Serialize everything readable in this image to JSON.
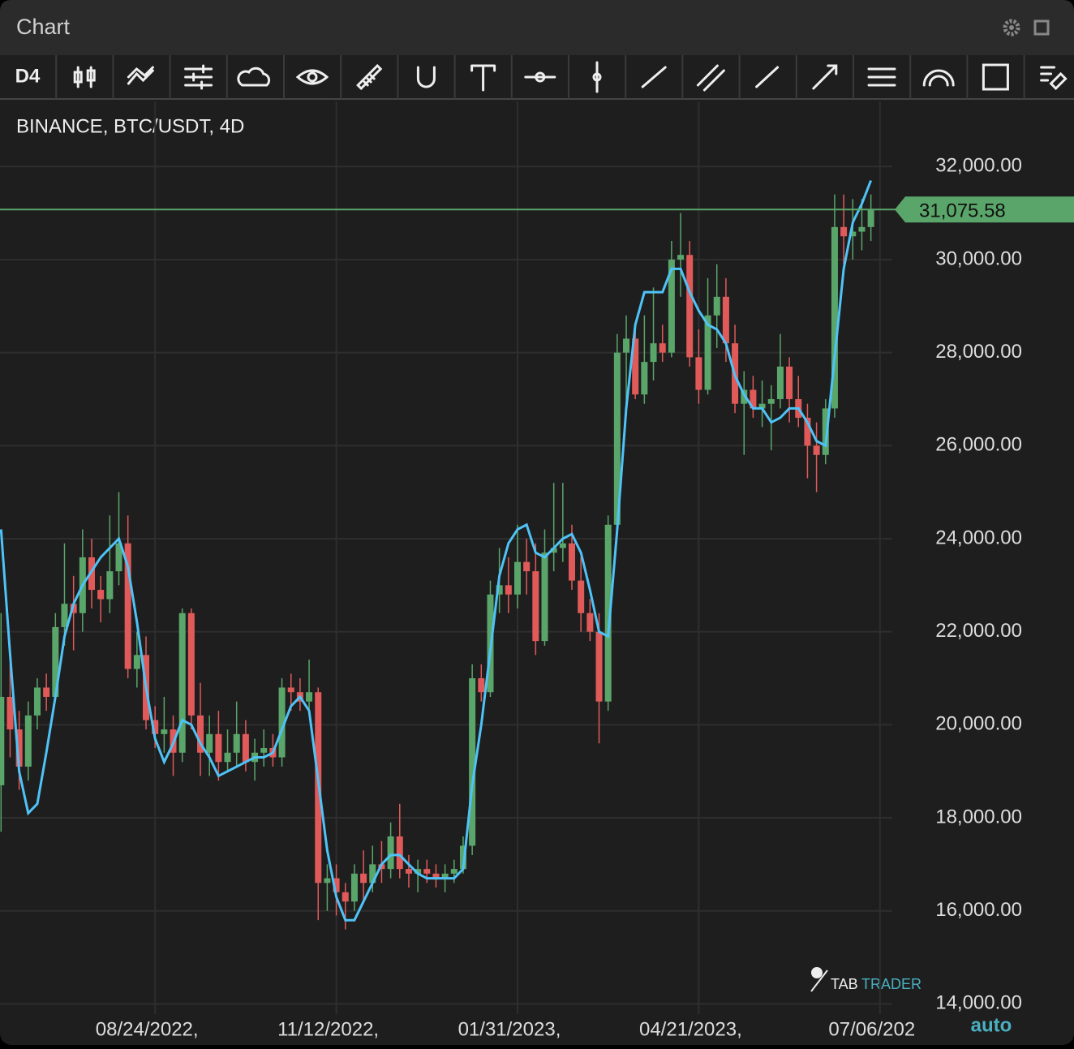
{
  "window": {
    "title": "Chart",
    "interval": "D4",
    "scale_mode": "auto",
    "logo": {
      "left": "TAB",
      "right": "TRADER"
    }
  },
  "chart_data": {
    "type": "candlestick",
    "title": "BINANCE, BTC/USDT, 4D",
    "up_color": "#5aa66a",
    "down_color": "#e05a5a",
    "line_color": "#4fc3f7",
    "ylim": [
      13780,
      33400
    ],
    "yticks": [
      {
        "value": 14000,
        "label": "14,000.00"
      },
      {
        "value": 16000,
        "label": "16,000.00"
      },
      {
        "value": 18000,
        "label": "18,000.00"
      },
      {
        "value": 20000,
        "label": "20,000.00"
      },
      {
        "value": 22000,
        "label": "22,000.00"
      },
      {
        "value": 24000,
        "label": "24,000.00"
      },
      {
        "value": 26000,
        "label": "26,000.00"
      },
      {
        "value": 28000,
        "label": "28,000.00"
      },
      {
        "value": 30000,
        "label": "30,000.00"
      },
      {
        "value": 32000,
        "label": "32,000.00"
      }
    ],
    "xticks": [
      "08/24/2022,",
      "11/12/2022,",
      "01/31/2023,",
      "04/21/2023,",
      "07/06/202"
    ],
    "grid": true,
    "last_price": {
      "value": 31075.58,
      "label": "31,075.58"
    },
    "ohlc": [
      [
        18700,
        22400,
        17700,
        20600
      ],
      [
        20600,
        21300,
        19300,
        19900
      ],
      [
        19900,
        20300,
        18600,
        19100
      ],
      [
        19100,
        20500,
        18800,
        20200
      ],
      [
        20200,
        21000,
        19900,
        20800
      ],
      [
        20800,
        21100,
        20300,
        20600
      ],
      [
        20600,
        22400,
        20500,
        22100
      ],
      [
        22100,
        23900,
        21700,
        22600
      ],
      [
        22600,
        23200,
        21600,
        22400
      ],
      [
        22400,
        24200,
        22000,
        23600
      ],
      [
        23600,
        24000,
        22500,
        22900
      ],
      [
        22900,
        23200,
        22200,
        22700
      ],
      [
        22700,
        24500,
        22400,
        23300
      ],
      [
        23300,
        25000,
        23000,
        23900
      ],
      [
        23900,
        24500,
        21000,
        21200
      ],
      [
        21200,
        22000,
        20800,
        21500
      ],
      [
        21500,
        21900,
        19900,
        20100
      ],
      [
        20100,
        20400,
        19500,
        19800
      ],
      [
        19800,
        20600,
        19400,
        19900
      ],
      [
        19900,
        20200,
        18900,
        19400
      ],
      [
        19400,
        22500,
        19200,
        22400
      ],
      [
        22400,
        22500,
        19900,
        20200
      ],
      [
        20200,
        20900,
        18900,
        19400
      ],
      [
        19400,
        20200,
        18900,
        19800
      ],
      [
        19800,
        20300,
        18800,
        19200
      ],
      [
        19200,
        19900,
        19000,
        19400
      ],
      [
        19400,
        20500,
        19100,
        19800
      ],
      [
        19800,
        20100,
        19000,
        19200
      ],
      [
        19200,
        19700,
        18800,
        19400
      ],
      [
        19400,
        19900,
        19100,
        19500
      ],
      [
        19500,
        19800,
        19100,
        19300
      ],
      [
        19300,
        21000,
        19100,
        20800
      ],
      [
        20800,
        21100,
        20300,
        20700
      ],
      [
        20700,
        21000,
        20300,
        20500
      ],
      [
        20500,
        21400,
        20200,
        20700
      ],
      [
        20700,
        20800,
        15800,
        16600
      ],
      [
        16600,
        17000,
        16000,
        16700
      ],
      [
        16700,
        17000,
        15900,
        16400
      ],
      [
        16400,
        16600,
        15600,
        16200
      ],
      [
        16200,
        17000,
        16000,
        16800
      ],
      [
        16800,
        17300,
        16200,
        16600
      ],
      [
        16600,
        17400,
        16400,
        17000
      ],
      [
        17000,
        17500,
        16600,
        16900
      ],
      [
        16900,
        17900,
        16700,
        17600
      ],
      [
        17600,
        18300,
        16700,
        16900
      ],
      [
        16900,
        17200,
        16500,
        16800
      ],
      [
        16800,
        17100,
        16400,
        16900
      ],
      [
        16900,
        17100,
        16600,
        16800
      ],
      [
        16800,
        17000,
        16500,
        16700
      ],
      [
        16700,
        17000,
        16400,
        16800
      ],
      [
        16800,
        17100,
        16600,
        16900
      ],
      [
        16900,
        17600,
        16800,
        17400
      ],
      [
        17400,
        21300,
        17200,
        21000
      ],
      [
        21000,
        21300,
        20500,
        20700
      ],
      [
        20700,
        23100,
        20600,
        22800
      ],
      [
        22800,
        23800,
        22400,
        23000
      ],
      [
        23000,
        23600,
        22400,
        22800
      ],
      [
        22800,
        24300,
        22500,
        23500
      ],
      [
        23500,
        24000,
        22800,
        23300
      ],
      [
        23300,
        23900,
        21500,
        21800
      ],
      [
        21800,
        24200,
        21700,
        23700
      ],
      [
        23700,
        25200,
        23300,
        23800
      ],
      [
        23800,
        25200,
        23500,
        23900
      ],
      [
        23900,
        24300,
        22900,
        23100
      ],
      [
        23100,
        23600,
        22000,
        22400
      ],
      [
        22400,
        22700,
        21800,
        22000
      ],
      [
        22000,
        22400,
        19600,
        20500
      ],
      [
        20500,
        24500,
        20300,
        24300
      ],
      [
        24300,
        28400,
        24100,
        28000
      ],
      [
        28000,
        28800,
        26700,
        28300
      ],
      [
        28300,
        28600,
        27000,
        27100
      ],
      [
        27100,
        28800,
        26900,
        27800
      ],
      [
        27800,
        29400,
        27400,
        28200
      ],
      [
        28200,
        28600,
        27800,
        28000
      ],
      [
        28000,
        30400,
        27900,
        30000
      ],
      [
        30000,
        31000,
        29200,
        30100
      ],
      [
        30100,
        30400,
        27700,
        27900
      ],
      [
        27900,
        28500,
        26900,
        27200
      ],
      [
        27200,
        29600,
        27100,
        28800
      ],
      [
        28800,
        29900,
        28100,
        29200
      ],
      [
        29200,
        29600,
        27800,
        28200
      ],
      [
        28200,
        28600,
        26700,
        26900
      ],
      [
        26900,
        27600,
        25800,
        27200
      ],
      [
        27200,
        27500,
        26600,
        26800
      ],
      [
        26800,
        27400,
        26400,
        26900
      ],
      [
        26900,
        27300,
        25900,
        27000
      ],
      [
        27000,
        28400,
        26800,
        27700
      ],
      [
        27700,
        27900,
        26500,
        27000
      ],
      [
        27000,
        27500,
        26400,
        26600
      ],
      [
        26600,
        26900,
        25300,
        26000
      ],
      [
        26000,
        26500,
        25000,
        25800
      ],
      [
        25800,
        27000,
        25600,
        26800
      ],
      [
        26800,
        31400,
        26600,
        30700
      ],
      [
        30700,
        31400,
        29900,
        30500
      ],
      [
        30500,
        31300,
        30000,
        30600
      ],
      [
        30600,
        31300,
        30200,
        30700
      ],
      [
        30700,
        31400,
        30400,
        31075.58
      ]
    ],
    "line_values": [
      24200,
      21500,
      19000,
      18100,
      18300,
      19400,
      20600,
      21900,
      22600,
      23000,
      23300,
      23600,
      23800,
      24000,
      23400,
      22200,
      20800,
      19700,
      19200,
      19600,
      20100,
      20000,
      19600,
      19300,
      18900,
      19000,
      19100,
      19200,
      19300,
      19300,
      19400,
      19900,
      20400,
      20600,
      20300,
      18800,
      17300,
      16300,
      15800,
      15800,
      16200,
      16600,
      17000,
      17200,
      17200,
      17000,
      16800,
      16700,
      16700,
      16700,
      16700,
      16900,
      18700,
      20000,
      21600,
      23200,
      23900,
      24200,
      24300,
      23700,
      23600,
      23800,
      24000,
      24100,
      23700,
      22900,
      22000,
      21900,
      24200,
      26800,
      28600,
      29300,
      29300,
      29300,
      29800,
      29800,
      29300,
      28900,
      28600,
      28500,
      28200,
      27500,
      27100,
      26800,
      26800,
      26500,
      26600,
      26800,
      26800,
      26500,
      26100,
      26000,
      27900,
      29800,
      30800,
      31200,
      31700
    ]
  }
}
